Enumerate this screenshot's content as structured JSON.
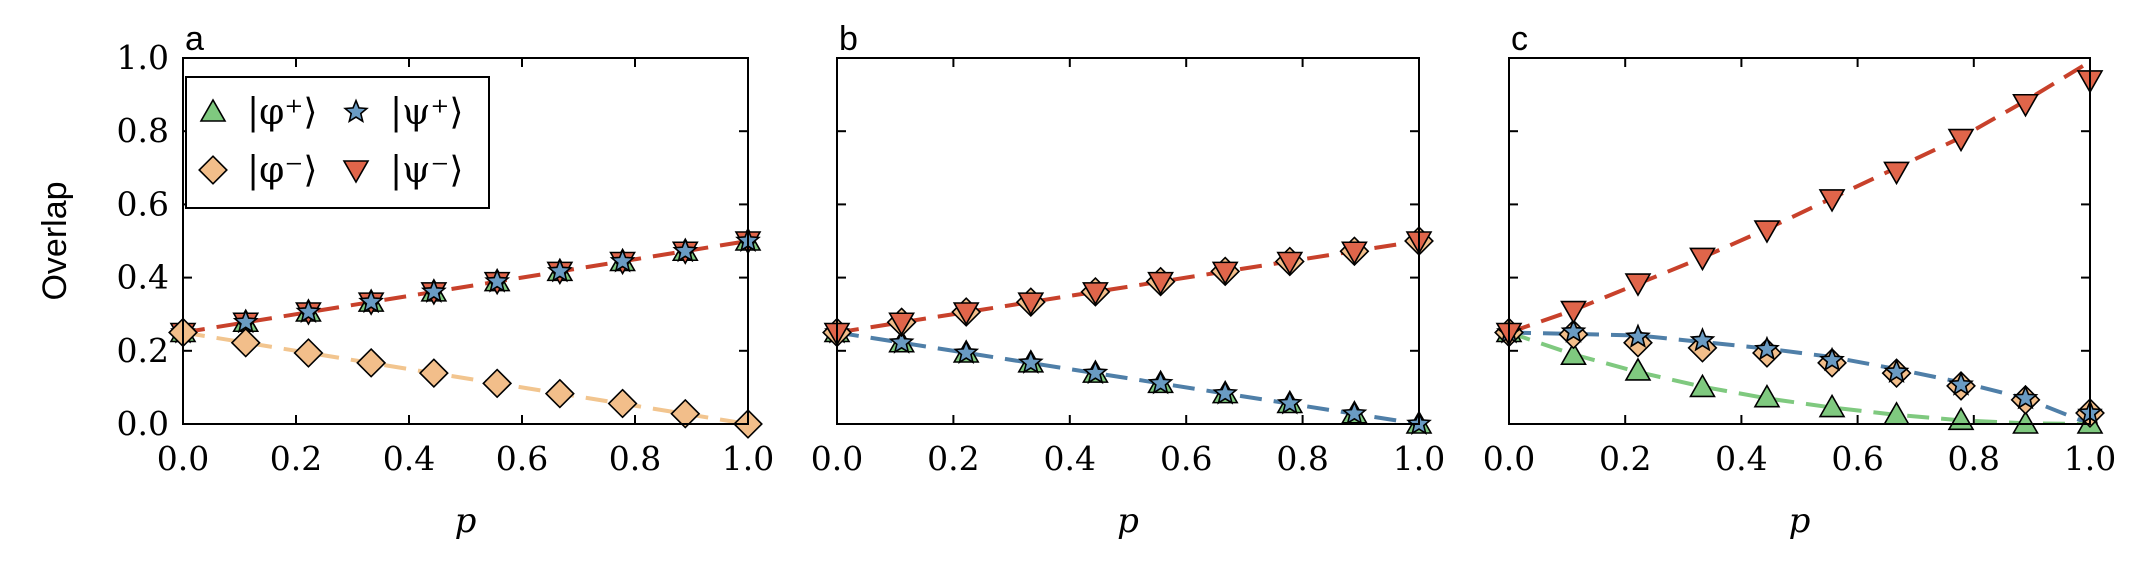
{
  "chart_data": [
    {
      "type": "scatter",
      "panel_label": "a",
      "xlabel": "p",
      "ylabel": "Overlap",
      "xlim": [
        0,
        1
      ],
      "ylim": [
        0,
        1
      ],
      "xticks": [
        "0.0",
        "0.2",
        "0.4",
        "0.6",
        "0.8",
        "1.0"
      ],
      "yticks": [
        "0.0",
        "0.2",
        "0.4",
        "0.6",
        "0.8",
        "1.0"
      ],
      "legend": {
        "placement": "top-left",
        "entries": [
          {
            "label": "|φ⁺⟩",
            "marker": "triangle-up",
            "color": "#7fc97f"
          },
          {
            "label": "|ψ⁺⟩",
            "marker": "star",
            "color": "#6a9bc3"
          },
          {
            "label": "|φ⁻⟩",
            "marker": "diamond",
            "color": "#f2be8a"
          },
          {
            "label": "|ψ⁻⟩",
            "marker": "triangle-down",
            "color": "#e0654a"
          }
        ]
      },
      "x": [
        0.0,
        0.111,
        0.222,
        0.333,
        0.444,
        0.556,
        0.667,
        0.778,
        0.889,
        1.0
      ],
      "series": [
        {
          "values": [
            0.25,
            0.278,
            0.306,
            0.333,
            0.361,
            0.389,
            0.417,
            0.444,
            0.472,
            0.5
          ],
          "marker": "triangle-up",
          "color": "#7fc97f"
        },
        {
          "values": [
            0.25,
            0.278,
            0.306,
            0.333,
            0.361,
            0.389,
            0.417,
            0.444,
            0.472,
            0.5
          ],
          "marker": "triangle-down",
          "color": "#e0654a"
        },
        {
          "values": [
            0.25,
            0.278,
            0.306,
            0.333,
            0.361,
            0.389,
            0.417,
            0.444,
            0.472,
            0.5
          ],
          "marker": "star",
          "color": "#6a9bc3"
        },
        {
          "values": [
            0.25,
            0.222,
            0.194,
            0.167,
            0.139,
            0.111,
            0.083,
            0.056,
            0.028,
            0.0
          ],
          "marker": "diamond",
          "color": "#f2be8a"
        }
      ],
      "fits": [
        {
          "y0": 0.25,
          "y1": 0.5,
          "color": "#c8412b"
        },
        {
          "y0": 0.25,
          "y1": 0.0,
          "color": "#f2c58f"
        }
      ]
    },
    {
      "type": "scatter",
      "panel_label": "b",
      "xlabel": "p",
      "xlim": [
        0,
        1
      ],
      "ylim": [
        0,
        1
      ],
      "xticks": [
        "0.0",
        "0.2",
        "0.4",
        "0.6",
        "0.8",
        "1.0"
      ],
      "x": [
        0.0,
        0.111,
        0.222,
        0.333,
        0.444,
        0.556,
        0.667,
        0.778,
        0.889,
        1.0
      ],
      "series": [
        {
          "values": [
            0.25,
            0.222,
            0.194,
            0.167,
            0.139,
            0.111,
            0.083,
            0.056,
            0.028,
            0.0
          ],
          "marker": "triangle-up",
          "color": "#7fc97f"
        },
        {
          "values": [
            0.25,
            0.222,
            0.194,
            0.167,
            0.139,
            0.111,
            0.083,
            0.056,
            0.028,
            0.0
          ],
          "marker": "star",
          "color": "#6a9bc3"
        },
        {
          "values": [
            0.25,
            0.278,
            0.306,
            0.333,
            0.361,
            0.389,
            0.417,
            0.444,
            0.472,
            0.5
          ],
          "marker": "diamond",
          "color": "#f2be8a"
        },
        {
          "values": [
            0.25,
            0.278,
            0.306,
            0.333,
            0.361,
            0.389,
            0.417,
            0.444,
            0.472,
            0.5
          ],
          "marker": "triangle-down",
          "color": "#e0654a"
        }
      ],
      "fits": [
        {
          "y0": 0.25,
          "y1": 0.5,
          "color": "#c8412b"
        },
        {
          "y0": 0.25,
          "y1": 0.0,
          "color": "#4f7fa8"
        }
      ]
    },
    {
      "type": "scatter",
      "panel_label": "c",
      "xlabel": "p",
      "xlim": [
        0,
        1
      ],
      "ylim": [
        0,
        1
      ],
      "xticks": [
        "0.0",
        "0.2",
        "0.4",
        "0.6",
        "0.8",
        "1.0"
      ],
      "x": [
        0.0,
        0.111,
        0.222,
        0.333,
        0.444,
        0.556,
        0.667,
        0.778,
        0.889,
        1.0
      ],
      "series": [
        {
          "values": [
            0.25,
            0.188,
            0.145,
            0.1,
            0.072,
            0.045,
            0.025,
            0.01,
            0.0,
            0.0
          ],
          "marker": "triangle-up",
          "color": "#7fc97f"
        },
        {
          "values": [
            0.25,
            0.245,
            0.222,
            0.208,
            0.194,
            0.167,
            0.139,
            0.104,
            0.066,
            0.03
          ],
          "marker": "diamond",
          "color": "#f2be8a"
        },
        {
          "values": [
            0.25,
            0.252,
            0.238,
            0.228,
            0.204,
            0.174,
            0.142,
            0.107,
            0.07,
            0.03
          ],
          "marker": "star",
          "color": "#6a9bc3"
        },
        {
          "values": [
            0.25,
            0.31,
            0.385,
            0.455,
            0.53,
            0.615,
            0.69,
            0.78,
            0.875,
            0.94
          ],
          "marker": "triangle-down",
          "color": "#e0654a"
        }
      ],
      "fits": [
        {
          "curve": [
            [
              0,
              0.25
            ],
            [
              0.111,
              0.311
            ],
            [
              0.222,
              0.383
            ],
            [
              0.333,
              0.455
            ],
            [
              0.444,
              0.533
            ],
            [
              0.556,
              0.617
            ],
            [
              0.667,
              0.7
            ],
            [
              0.778,
              0.783
            ],
            [
              0.889,
              0.883
            ],
            [
              1.0,
              0.99
            ]
          ],
          "color": "#c8412b"
        },
        {
          "curve": [
            [
              0,
              0.25
            ],
            [
              0.222,
              0.242
            ],
            [
              0.444,
              0.206
            ],
            [
              0.556,
              0.183
            ],
            [
              0.667,
              0.15
            ],
            [
              0.778,
              0.114
            ],
            [
              0.889,
              0.07
            ],
            [
              1.0,
              0.0
            ]
          ],
          "color": "#4f7fa8"
        },
        {
          "curve": [
            [
              0,
              0.25
            ],
            [
              0.111,
              0.19
            ],
            [
              0.222,
              0.142
            ],
            [
              0.333,
              0.102
            ],
            [
              0.444,
              0.07
            ],
            [
              0.556,
              0.045
            ],
            [
              0.667,
              0.025
            ],
            [
              0.778,
              0.01
            ],
            [
              0.889,
              0.002
            ],
            [
              1.0,
              0.0
            ]
          ],
          "color": "#7fc97f"
        }
      ]
    }
  ]
}
